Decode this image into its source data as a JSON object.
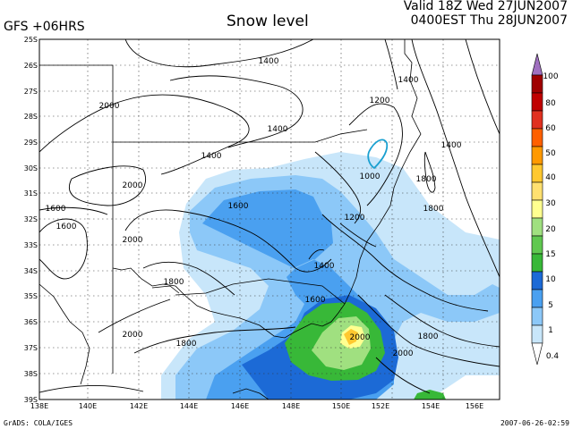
{
  "header": {
    "model_label": "GFS +06HRS",
    "title": "Snow level",
    "valid_line1": "Valid 18Z Wed 27JUN2007",
    "valid_line2": "0400EST Thu 28JUN2007"
  },
  "footer": {
    "credit": "GrADS: COLA/IGES",
    "timestamp": "2007-06-26-02:59"
  },
  "map": {
    "lat_labels": [
      "25S",
      "26S",
      "27S",
      "28S",
      "29S",
      "30S",
      "31S",
      "32S",
      "33S",
      "34S",
      "35S",
      "36S",
      "37S",
      "38S",
      "39S"
    ],
    "lon_labels": [
      "138E",
      "140E",
      "142E",
      "144E",
      "146E",
      "148E",
      "150E",
      "152E",
      "154E",
      "156E"
    ],
    "contour_labels": [
      {
        "text": "1400"
      },
      {
        "text": "1400"
      },
      {
        "text": "1200"
      },
      {
        "text": "1400"
      },
      {
        "text": "1400"
      },
      {
        "text": "1000"
      },
      {
        "text": "1800"
      },
      {
        "text": "2000"
      },
      {
        "text": "2000"
      },
      {
        "text": "1400"
      },
      {
        "text": "1600"
      },
      {
        "text": "1200"
      },
      {
        "text": "1800"
      },
      {
        "text": "1600"
      },
      {
        "text": "2000"
      },
      {
        "text": "1400"
      },
      {
        "text": "1800"
      },
      {
        "text": "1600"
      },
      {
        "text": "1600"
      },
      {
        "text": "2000"
      },
      {
        "text": "1800"
      },
      {
        "text": "2000"
      },
      {
        "text": "1800"
      },
      {
        "text": "2000"
      }
    ]
  },
  "colorbar": {
    "levels": [
      "100",
      "80",
      "60",
      "50",
      "40",
      "30",
      "20",
      "15",
      "10",
      "5",
      "1",
      "0.4"
    ],
    "colors": [
      "#a00000",
      "#c00000",
      "#e03020",
      "#ff6000",
      "#ff9900",
      "#ffc830",
      "#ffff90",
      "#a0e080",
      "#38b838",
      "#1c6ad6",
      "#4aa0f0",
      "#8cc8f8",
      "#c8e6fa",
      "#ffffff"
    ]
  }
}
